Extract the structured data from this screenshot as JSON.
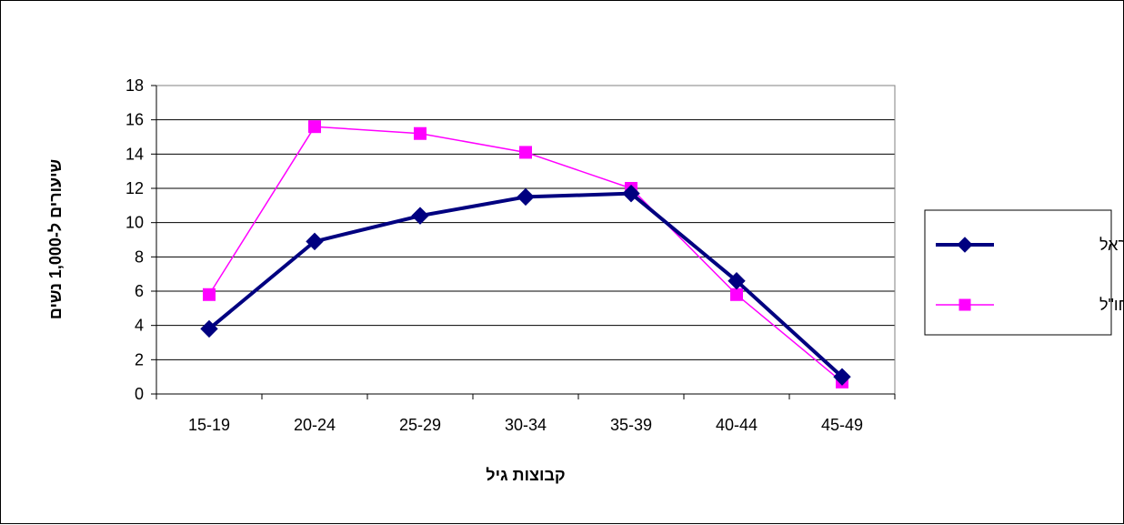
{
  "chart_data": {
    "type": "line",
    "title": "",
    "xlabel": "קבוצות גיל",
    "ylabel": "שיעורים ל-1,000 נשים",
    "categories": [
      "15-19",
      "20-24",
      "25-29",
      "30-34",
      "35-39",
      "40-44",
      "45-49"
    ],
    "ylim": [
      0,
      18
    ],
    "yticks": [
      0,
      2,
      4,
      6,
      8,
      10,
      12,
      14,
      16,
      18
    ],
    "grid": true,
    "legend_position": "right",
    "series": [
      {
        "name": "ילידות ישראל",
        "values": [
          3.8,
          8.9,
          10.4,
          11.5,
          11.7,
          6.6,
          1.0
        ],
        "color": "#000080",
        "marker": "diamond"
      },
      {
        "name": "ילידות חו\"ל",
        "values": [
          5.8,
          15.6,
          15.2,
          14.1,
          12.0,
          5.8,
          0.7
        ],
        "color": "#ff00ff",
        "marker": "square"
      }
    ]
  }
}
